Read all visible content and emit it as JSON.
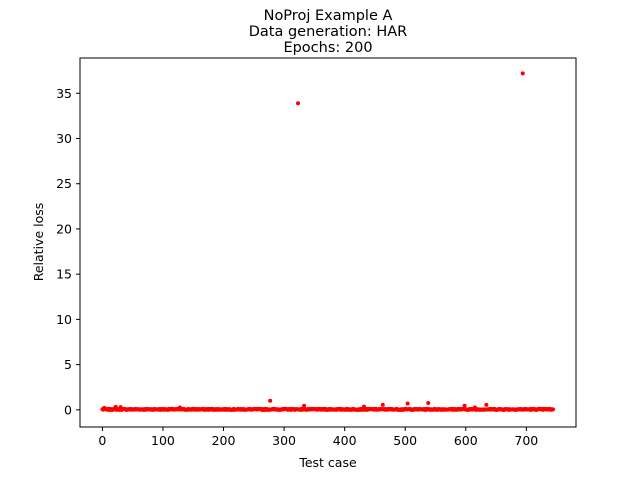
{
  "chart_data": {
    "type": "scatter",
    "title_lines": [
      "NoProj Example A",
      "Data generation: HAR",
      "Epochs: 200"
    ],
    "xlabel": "Test case",
    "ylabel": "Relative loss",
    "xlim": [
      -37,
      782
    ],
    "ylim": [
      -1.9,
      38.9
    ],
    "xticks": [
      0,
      100,
      200,
      300,
      400,
      500,
      600,
      700
    ],
    "yticks": [
      0,
      5,
      10,
      15,
      20,
      25,
      30,
      35
    ],
    "grid": false,
    "legend": "none",
    "marker_color": "#ff0000",
    "n_points": 745,
    "outliers": [
      {
        "x": 323,
        "y": 33.9
      },
      {
        "x": 694,
        "y": 37.2
      },
      {
        "x": 277,
        "y": 1.0
      },
      {
        "x": 538,
        "y": 0.75
      },
      {
        "x": 504,
        "y": 0.7
      },
      {
        "x": 463,
        "y": 0.55
      },
      {
        "x": 634,
        "y": 0.55
      },
      {
        "x": 598,
        "y": 0.45
      },
      {
        "x": 333,
        "y": 0.45
      },
      {
        "x": 432,
        "y": 0.35
      },
      {
        "x": 22,
        "y": 0.32
      },
      {
        "x": 30,
        "y": 0.3
      },
      {
        "x": 128,
        "y": 0.25
      },
      {
        "x": 3,
        "y": 0.22
      },
      {
        "x": 615,
        "y": 0.25
      }
    ],
    "baseline_y": 0.05
  }
}
